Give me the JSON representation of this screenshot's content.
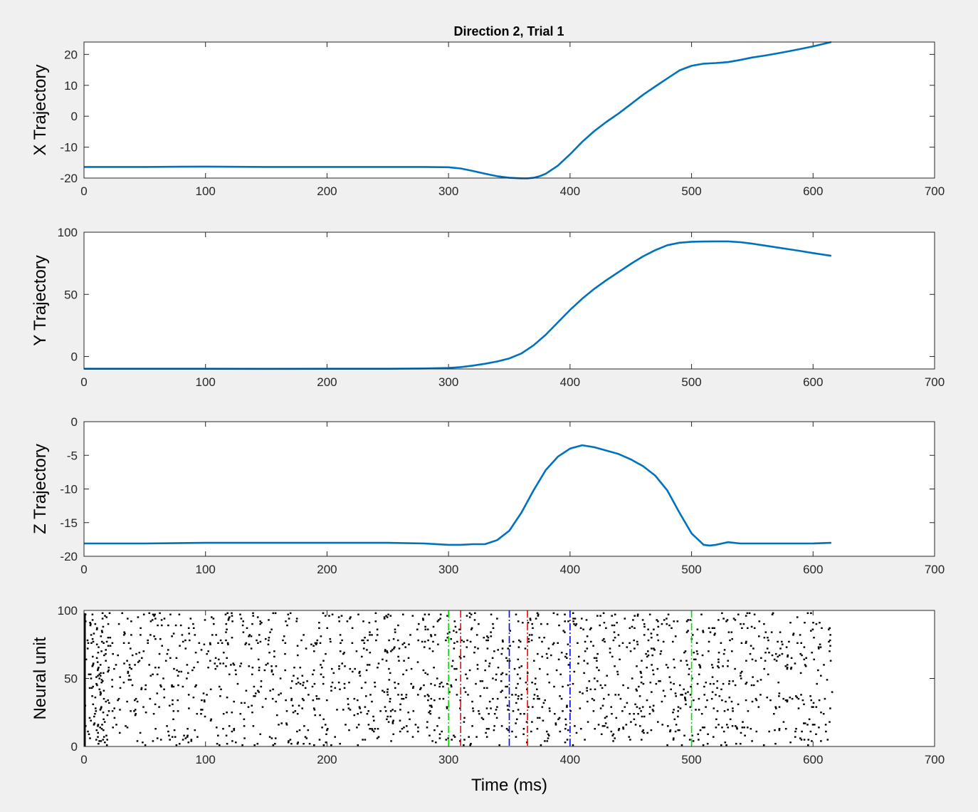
{
  "figure": {
    "title": "Direction 2, Trial 1"
  },
  "chart_data": [
    {
      "type": "line",
      "ylabel": "X Trajectory",
      "xlabel": "",
      "xlim": [
        0,
        700
      ],
      "ylim": [
        -20,
        24
      ],
      "xticks": [
        0,
        100,
        200,
        300,
        400,
        500,
        600,
        700
      ],
      "yticks": [
        -20,
        -10,
        0,
        10,
        20
      ],
      "color": "#0072bd",
      "series": [
        {
          "x": [
            0,
            50,
            100,
            150,
            200,
            250,
            280,
            300,
            310,
            320,
            330,
            340,
            350,
            360,
            365,
            370,
            375,
            380,
            390,
            400,
            410,
            420,
            430,
            440,
            450,
            460,
            470,
            480,
            490,
            500,
            510,
            520,
            530,
            540,
            550,
            560,
            570,
            580,
            590,
            600,
            615
          ],
          "y": [
            -16.4,
            -16.4,
            -16.3,
            -16.4,
            -16.4,
            -16.4,
            -16.4,
            -16.5,
            -16.9,
            -17.7,
            -18.6,
            -19.4,
            -19.9,
            -20.1,
            -20.1,
            -19.9,
            -19.4,
            -18.6,
            -16.0,
            -12.3,
            -8.3,
            -4.8,
            -1.8,
            0.9,
            3.9,
            6.9,
            9.6,
            12.2,
            14.8,
            16.3,
            17.0,
            17.2,
            17.5,
            18.2,
            19.0,
            19.6,
            20.3,
            21.0,
            21.8,
            22.6,
            24.0
          ]
        }
      ]
    },
    {
      "type": "line",
      "ylabel": "Y Trajectory",
      "xlabel": "",
      "xlim": [
        0,
        700
      ],
      "ylim": [
        -10,
        100
      ],
      "xticks": [
        0,
        100,
        200,
        300,
        400,
        500,
        600,
        700
      ],
      "yticks": [
        0,
        50,
        100
      ],
      "color": "#0072bd",
      "series": [
        {
          "x": [
            0,
            50,
            100,
            150,
            200,
            250,
            280,
            300,
            310,
            320,
            330,
            340,
            350,
            360,
            370,
            380,
            390,
            400,
            410,
            420,
            430,
            440,
            450,
            460,
            470,
            480,
            490,
            500,
            510,
            520,
            530,
            540,
            550,
            560,
            570,
            580,
            590,
            600,
            615
          ],
          "y": [
            -9.8,
            -9.8,
            -9.8,
            -9.9,
            -9.8,
            -9.8,
            -9.6,
            -9.2,
            -8.5,
            -7.3,
            -5.8,
            -4.0,
            -1.5,
            2.5,
            9.0,
            17.5,
            27.5,
            37.5,
            46.5,
            54.5,
            61.5,
            68.0,
            74.5,
            80.5,
            85.5,
            89.5,
            91.5,
            92.3,
            92.5,
            92.6,
            92.6,
            92.0,
            90.8,
            89.3,
            87.8,
            86.3,
            84.8,
            83.2,
            81.0
          ]
        }
      ]
    },
    {
      "type": "line",
      "ylabel": "Z Trajectory",
      "xlabel": "",
      "xlim": [
        0,
        700
      ],
      "ylim": [
        -20,
        0
      ],
      "xticks": [
        0,
        100,
        200,
        300,
        400,
        500,
        600,
        700
      ],
      "yticks": [
        -20,
        -15,
        -10,
        -5,
        0
      ],
      "color": "#0072bd",
      "series": [
        {
          "x": [
            0,
            50,
            100,
            150,
            200,
            250,
            280,
            300,
            310,
            320,
            330,
            340,
            350,
            360,
            370,
            380,
            390,
            400,
            410,
            420,
            430,
            440,
            450,
            460,
            470,
            480,
            490,
            500,
            510,
            515,
            520,
            530,
            540,
            560,
            580,
            600,
            615
          ],
          "y": [
            -18.1,
            -18.1,
            -18.0,
            -18.0,
            -18.0,
            -18.0,
            -18.1,
            -18.3,
            -18.3,
            -18.2,
            -18.2,
            -17.6,
            -16.2,
            -13.5,
            -10.2,
            -7.2,
            -5.2,
            -4.0,
            -3.5,
            -3.8,
            -4.3,
            -4.8,
            -5.6,
            -6.6,
            -8.0,
            -10.2,
            -13.5,
            -16.6,
            -18.3,
            -18.4,
            -18.3,
            -17.9,
            -18.1,
            -18.1,
            -18.1,
            -18.1,
            -18.0
          ]
        }
      ]
    },
    {
      "type": "scatter",
      "ylabel": "Neural unit",
      "xlabel": "Time (ms)",
      "xlim": [
        0,
        700
      ],
      "ylim": [
        0,
        100
      ],
      "xticks": [
        0,
        100,
        200,
        300,
        400,
        500,
        600,
        700
      ],
      "yticks": [
        0,
        50,
        100
      ],
      "spike_color": "#000000",
      "num_units": 98,
      "trial_length_ms": 615,
      "markers": [
        {
          "x": 300,
          "color": "#00e000",
          "style": "dash-dot"
        },
        {
          "x": 310,
          "color": "#ff0000",
          "style": "dash-dot"
        },
        {
          "x": 350,
          "color": "#0000ff",
          "style": "dash-dot"
        },
        {
          "x": 365,
          "color": "#ff0000",
          "style": "dash-dot"
        },
        {
          "x": 400,
          "color": "#0000ff",
          "style": "dash-dot"
        },
        {
          "x": 500,
          "color": "#00e000",
          "style": "dash-dot"
        }
      ]
    }
  ]
}
